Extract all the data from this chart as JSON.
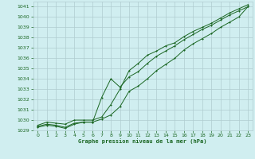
{
  "xlabel": "Graphe pression niveau de la mer (hPa)",
  "xlim": [
    -0.5,
    23.5
  ],
  "ylim": [
    1029,
    1041.5
  ],
  "yticks": [
    1029,
    1030,
    1031,
    1032,
    1033,
    1034,
    1035,
    1036,
    1037,
    1038,
    1039,
    1040,
    1041
  ],
  "xticks": [
    0,
    1,
    2,
    3,
    4,
    5,
    6,
    7,
    8,
    9,
    10,
    11,
    12,
    13,
    14,
    15,
    16,
    17,
    18,
    19,
    20,
    21,
    22,
    23
  ],
  "background_color": "#d0eef0",
  "grid_color": "#b0ccd0",
  "line_color": "#1a6622",
  "line1_x": [
    0,
    1,
    2,
    3,
    4,
    5,
    6,
    7,
    8,
    9,
    10,
    11,
    12,
    13,
    14,
    15,
    16,
    17,
    18,
    19,
    20,
    21,
    22,
    23
  ],
  "line1_y": [
    1029.5,
    1029.8,
    1029.7,
    1029.6,
    1030.0,
    1030.0,
    1030.0,
    1030.3,
    1031.5,
    1033.0,
    1034.8,
    1035.5,
    1036.3,
    1036.7,
    1037.2,
    1037.5,
    1038.1,
    1038.6,
    1039.0,
    1039.4,
    1039.9,
    1040.4,
    1040.8,
    1041.2
  ],
  "line2_x": [
    0,
    1,
    2,
    3,
    4,
    5,
    6,
    7,
    8,
    9,
    10,
    11,
    12,
    13,
    14,
    15,
    16,
    17,
    18,
    19,
    20,
    21,
    22,
    23
  ],
  "line2_y": [
    1029.4,
    1029.6,
    1029.5,
    1029.3,
    1029.7,
    1029.8,
    1029.8,
    1032.2,
    1034.0,
    1033.2,
    1034.2,
    1034.7,
    1035.5,
    1036.2,
    1036.7,
    1037.2,
    1037.8,
    1038.3,
    1038.8,
    1039.2,
    1039.7,
    1040.2,
    1040.6,
    1041.0
  ],
  "line3_x": [
    0,
    1,
    2,
    3,
    4,
    5,
    6,
    7,
    8,
    9,
    10,
    11,
    12,
    13,
    14,
    15,
    16,
    17,
    18,
    19,
    20,
    21,
    22,
    23
  ],
  "line3_y": [
    1029.3,
    1029.5,
    1029.4,
    1029.2,
    1029.6,
    1029.8,
    1029.8,
    1030.1,
    1030.5,
    1031.3,
    1032.8,
    1033.3,
    1034.0,
    1034.8,
    1035.4,
    1036.0,
    1036.8,
    1037.4,
    1037.9,
    1038.4,
    1039.0,
    1039.5,
    1040.0,
    1041.0
  ]
}
